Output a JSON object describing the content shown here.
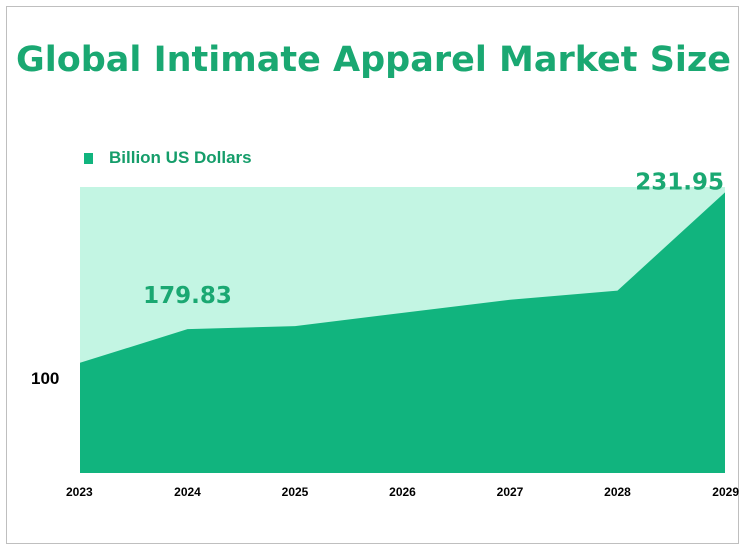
{
  "colors": {
    "title": "#1aa872",
    "area": "#11b47e",
    "plot_background": "#c3f5e3",
    "label": "#1aa872",
    "axis_text": "#000000"
  },
  "chart_data": {
    "type": "area",
    "title": "Global Intimate Apparel Market Size",
    "xlabel": "",
    "ylabel": "",
    "legend": {
      "position": "top-left"
    },
    "grid": false,
    "x": [
      "2023",
      "2024",
      "2025",
      "2026",
      "2027",
      "2028",
      "2029"
    ],
    "series": [
      {
        "name": "Billion US Dollars",
        "values": [
          167,
          179.83,
          181,
          186,
          191,
          194.5,
          231.95
        ]
      }
    ],
    "data_labels": [
      {
        "x": "2024",
        "text": "179.83"
      },
      {
        "x": "2029",
        "text": "231.95"
      }
    ],
    "y_ticks": [
      "100"
    ],
    "ylim": [
      125,
      234
    ]
  }
}
